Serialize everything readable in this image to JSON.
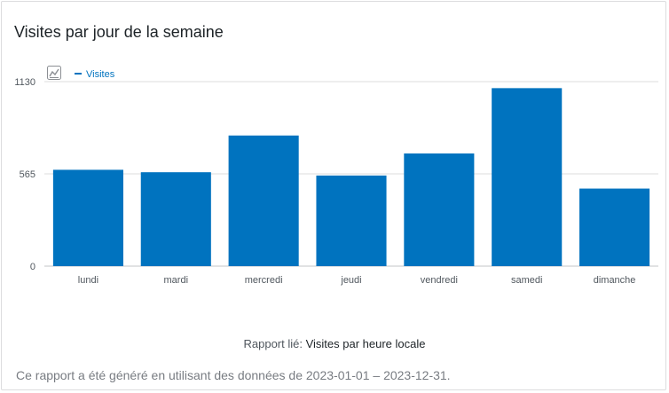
{
  "widget": {
    "title": "Visites par jour de la semaine",
    "related_prefix": "Rapport lié: ",
    "related_link": "Visites par heure locale",
    "footer": "Ce rapport a été généré en utilisant des données de 2023-01-01 – 2023-12-31."
  },
  "chart_icon": "line-chart-icon",
  "chart_data": {
    "type": "bar",
    "categories": [
      "lundi",
      "mardi",
      "mercredi",
      "jeudi",
      "vendredi",
      "samedi",
      "dimanche"
    ],
    "series": [
      {
        "name": "Visites",
        "values": [
          590,
          575,
          800,
          555,
          690,
          1090,
          475
        ]
      }
    ],
    "ylim": [
      0,
      1130
    ],
    "yticks": [
      "0",
      "565",
      "1130"
    ],
    "grid": true,
    "legend": "top-left",
    "color": "#0073bf"
  }
}
